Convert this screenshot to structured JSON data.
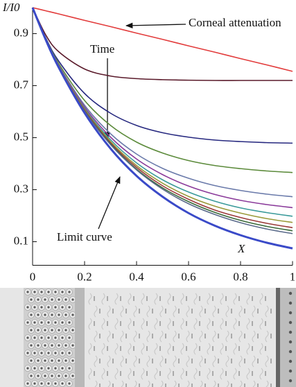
{
  "chart_data": {
    "type": "line",
    "ylabel": "I/I0",
    "xlabel": "X",
    "annotation": "Time",
    "x": [
      0,
      0.05,
      0.1,
      0.2,
      0.3,
      0.4,
      0.5,
      0.6,
      0.7,
      0.8,
      0.9,
      1
    ],
    "xlim": [
      0,
      1
    ],
    "xticks": [
      0,
      0.2,
      0.4,
      0.6,
      0.8,
      1
    ],
    "ylim": [
      0.02,
      1
    ],
    "yticks": [
      0.1,
      0.3,
      0.5,
      0.7,
      0.9
    ],
    "series": [
      {
        "name": "Corneal attenuation",
        "color": "#e23b3b",
        "values": [
          1,
          0.988,
          0.976,
          0.951,
          0.927,
          0.902,
          0.878,
          0.853,
          0.829,
          0.804,
          0.78,
          0.755
        ]
      },
      {
        "color": "#5a1a2a",
        "values": [
          1,
          0.896,
          0.831,
          0.764,
          0.737,
          0.727,
          0.723,
          0.721,
          0.72,
          0.72,
          0.72,
          0.72
        ]
      },
      {
        "color": "#26287f",
        "values": [
          1,
          0.885,
          0.795,
          0.67,
          0.594,
          0.547,
          0.519,
          0.502,
          0.491,
          0.485,
          0.481,
          0.479
        ]
      },
      {
        "color": "#5b8a3a",
        "values": [
          1,
          0.883,
          0.786,
          0.643,
          0.547,
          0.483,
          0.441,
          0.412,
          0.393,
          0.381,
          0.372,
          0.366
        ]
      },
      {
        "color": "#6a7aaa",
        "values": [
          1,
          0.881,
          0.78,
          0.625,
          0.515,
          0.437,
          0.382,
          0.344,
          0.316,
          0.297,
          0.283,
          0.273
        ]
      },
      {
        "color": "#8a3a9a",
        "values": [
          1,
          0.88,
          0.778,
          0.618,
          0.502,
          0.418,
          0.358,
          0.314,
          0.282,
          0.259,
          0.243,
          0.231
        ]
      },
      {
        "color": "#3a9a9a",
        "values": [
          1,
          0.879,
          0.776,
          0.612,
          0.492,
          0.403,
          0.338,
          0.291,
          0.256,
          0.23,
          0.212,
          0.198
        ]
      },
      {
        "color": "#9a9a3a",
        "values": [
          1,
          0.879,
          0.776,
          0.609,
          0.485,
          0.393,
          0.325,
          0.274,
          0.237,
          0.21,
          0.189,
          0.174
        ]
      },
      {
        "color": "#9a3a3a",
        "values": [
          1,
          0.879,
          0.774,
          0.606,
          0.48,
          0.386,
          0.315,
          0.263,
          0.222,
          0.193,
          0.171,
          0.154
        ]
      },
      {
        "color": "#3a6a3a",
        "values": [
          1,
          0.879,
          0.773,
          0.603,
          0.476,
          0.379,
          0.307,
          0.254,
          0.213,
          0.182,
          0.159,
          0.142
        ]
      },
      {
        "color": "#5a6a8a",
        "values": [
          1,
          0.879,
          0.773,
          0.602,
          0.473,
          0.376,
          0.302,
          0.246,
          0.205,
          0.173,
          0.149,
          0.131
        ]
      },
      {
        "name": "Limit curve",
        "color": "#3a4ac8",
        "values": [
          1,
          0.878,
          0.771,
          0.595,
          0.458,
          0.353,
          0.273,
          0.21,
          0.162,
          0.125,
          0.0963,
          0.0743
        ]
      }
    ]
  }
}
